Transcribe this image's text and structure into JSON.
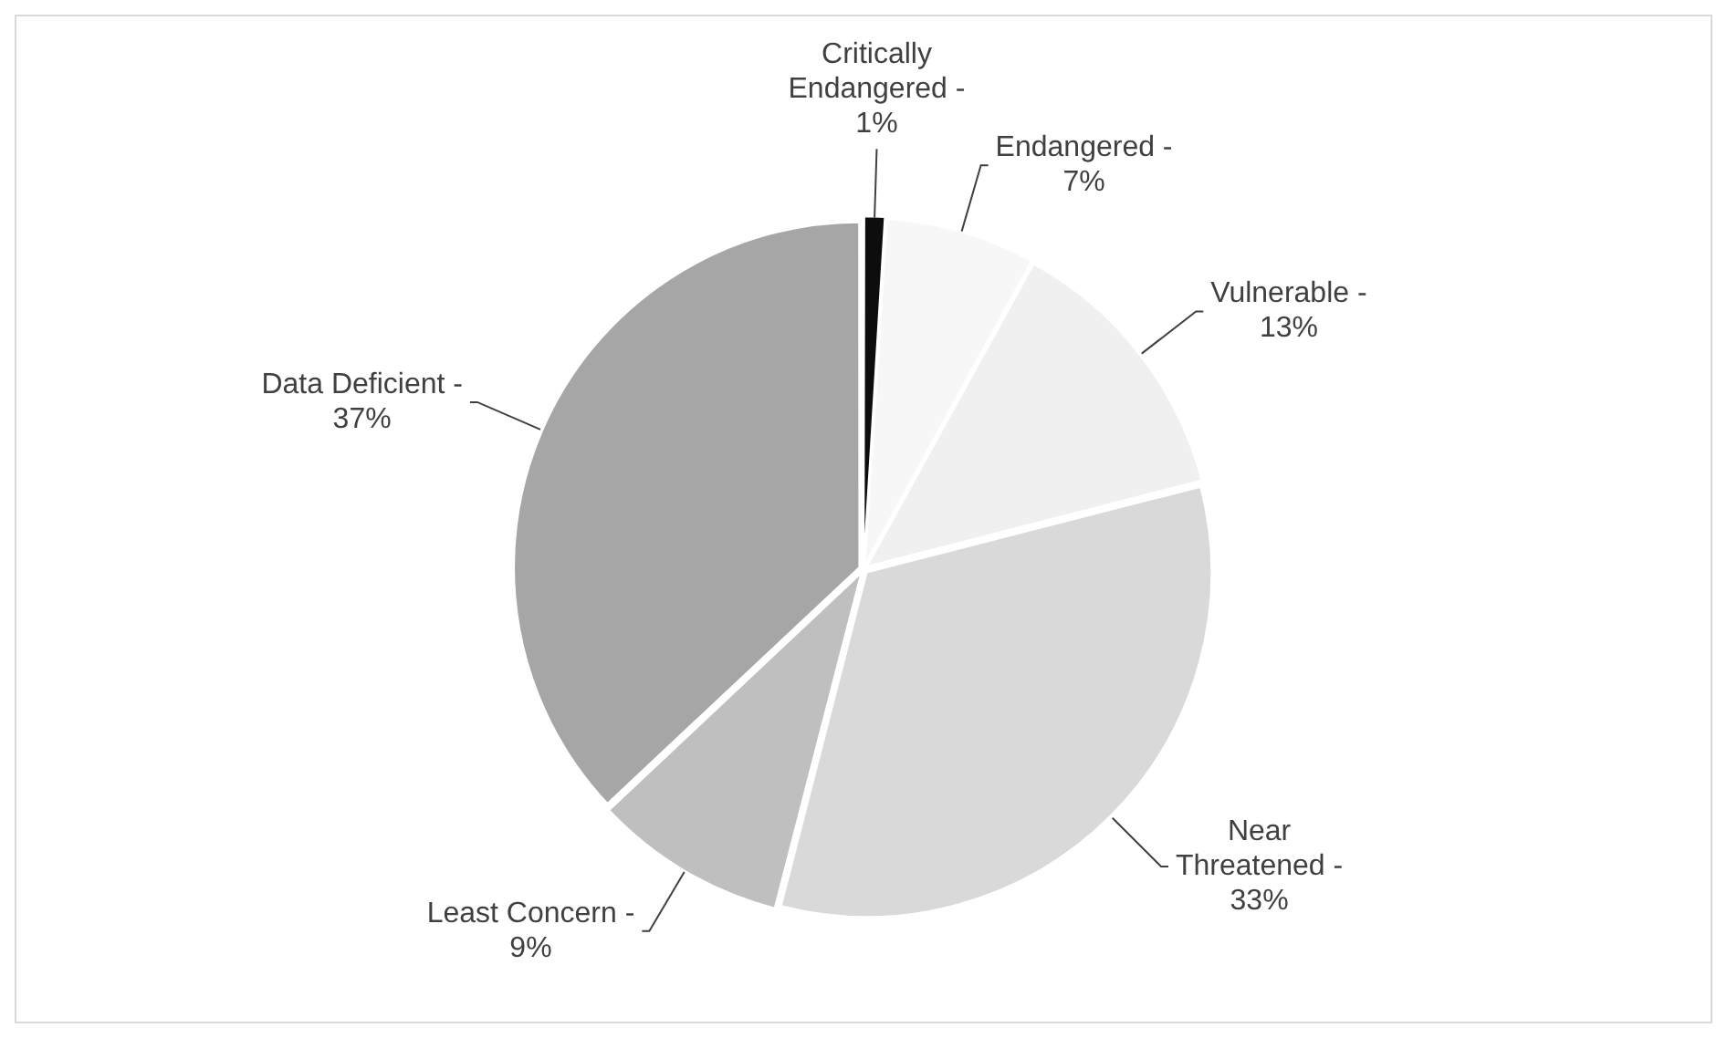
{
  "chart_data": {
    "type": "pie",
    "categories": [
      "Critically Endangered -",
      "Endangered -",
      "Vulnerable -",
      "Near Threatened -",
      "Least Concern -",
      "Data Deficient -"
    ],
    "values": [
      1,
      7,
      13,
      33,
      9,
      37
    ],
    "colors": [
      "#0d0d0d",
      "#f7f7f7",
      "#f0f0f0",
      "#d9d9d9",
      "#bfbfbf",
      "#a6a6a6"
    ],
    "value_labels": [
      "1%",
      "7%",
      "13%",
      "33%",
      "9%",
      "37%"
    ],
    "legend": false
  }
}
